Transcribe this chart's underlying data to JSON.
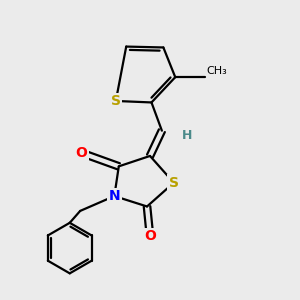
{
  "background_color": "#ebebeb",
  "atom_colors": {
    "S": "#b8a000",
    "N": "#0000ff",
    "O": "#ff0000",
    "C": "#000000",
    "H": "#4a8a8a"
  },
  "bond_color": "#000000",
  "bond_width": 1.6,
  "font_size_atom": 10,
  "font_size_methyl": 8,
  "font_size_h": 9
}
